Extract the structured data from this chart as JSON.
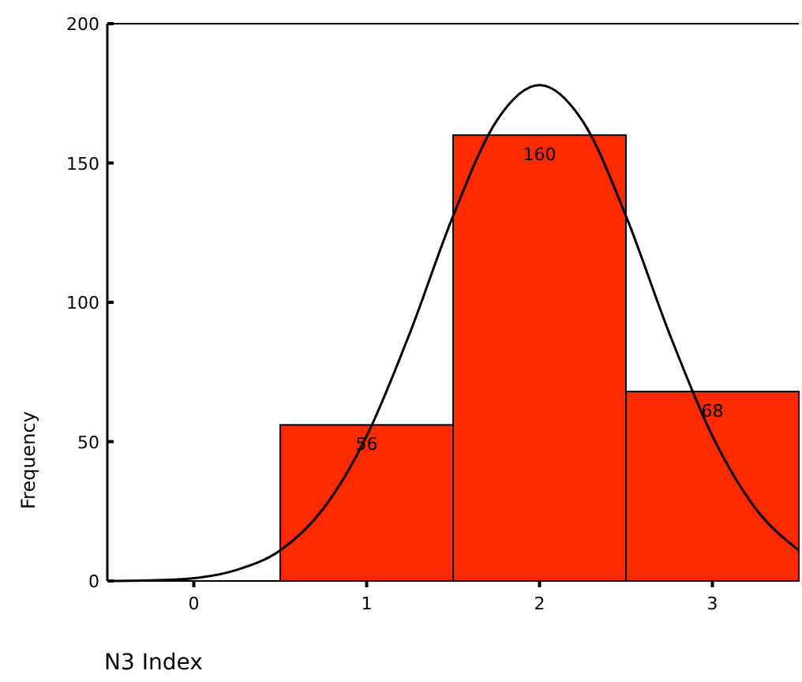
{
  "chart_data": {
    "type": "histogram",
    "xlabel": "N3 Index",
    "ylabel": "Frequency",
    "bins": [
      -0.5,
      0.5,
      1.5,
      2.5,
      3.5
    ],
    "values": [
      0,
      56,
      160,
      68
    ],
    "color": "#ff2a00",
    "value_labels": [
      null,
      "56",
      "160",
      "68"
    ],
    "xlim": [
      -0.5,
      3.5
    ],
    "xticks": [
      0,
      1,
      2,
      3
    ],
    "ylim": [
      0,
      200
    ],
    "yticks": [
      0,
      50,
      100,
      150,
      200
    ],
    "grid": false,
    "series": [
      {
        "type": "line",
        "color": "#000000",
        "x": [
          -0.5,
          -0.25,
          0,
          0.25,
          0.5,
          0.75,
          1,
          1.25,
          1.5,
          1.75,
          2,
          2.25,
          2.5,
          2.75,
          3,
          3.25,
          3.5
        ],
        "values": [
          0,
          0.2,
          1,
          4,
          11,
          26,
          52,
          89,
          131,
          165,
          178,
          165,
          131,
          89,
          52,
          26,
          11
        ]
      }
    ]
  }
}
